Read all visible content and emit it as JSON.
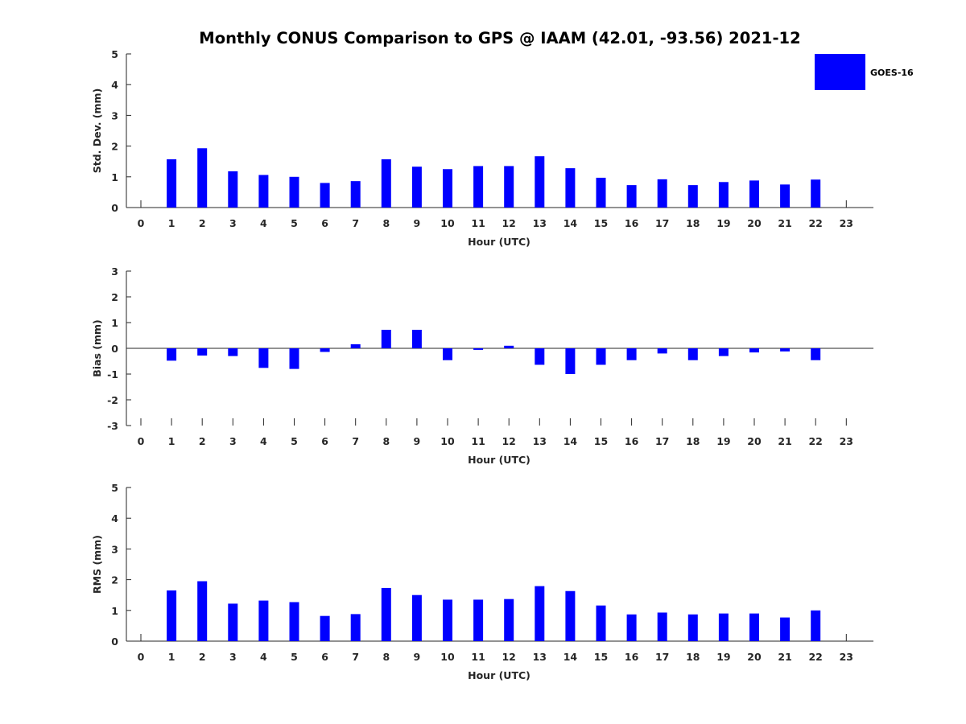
{
  "chart_data": {
    "type": "bar",
    "title": "Monthly CONUS Comparison to GPS @ IAAM (42.01, -93.56) 2021-12",
    "legend": {
      "label": "GOES-16",
      "placement": "top-right"
    },
    "colors": {
      "bar": "#0000ff",
      "axis": "#262626"
    },
    "categories": [
      "0",
      "1",
      "2",
      "3",
      "4",
      "5",
      "6",
      "7",
      "8",
      "9",
      "10",
      "11",
      "12",
      "13",
      "14",
      "15",
      "16",
      "17",
      "18",
      "19",
      "20",
      "21",
      "22",
      "23"
    ],
    "panels": [
      {
        "id": "stddev",
        "ylabel": "Std. Dev. (mm)",
        "xlabel": "Hour (UTC)",
        "ylim": [
          0,
          5
        ],
        "yticks": [
          0,
          1,
          2,
          3,
          4,
          5
        ],
        "values": [
          null,
          1.57,
          1.93,
          1.18,
          1.06,
          1.0,
          0.8,
          0.86,
          1.57,
          1.33,
          1.25,
          1.35,
          1.35,
          1.67,
          1.28,
          0.97,
          0.73,
          0.92,
          0.73,
          0.83,
          0.88,
          0.75,
          0.91,
          null
        ]
      },
      {
        "id": "bias",
        "ylabel": "Bias (mm)",
        "xlabel": "Hour (UTC)",
        "ylim": [
          -3,
          3
        ],
        "yticks": [
          -3,
          -2,
          -1,
          0,
          1,
          2,
          3
        ],
        "values": [
          null,
          -0.48,
          -0.28,
          -0.3,
          -0.76,
          -0.8,
          -0.14,
          0.16,
          0.72,
          0.72,
          -0.46,
          -0.06,
          0.1,
          -0.64,
          -1.0,
          -0.64,
          -0.46,
          -0.2,
          -0.46,
          -0.3,
          -0.16,
          -0.12,
          -0.46,
          null
        ]
      },
      {
        "id": "rms",
        "ylabel": "RMS (mm)",
        "xlabel": "Hour (UTC)",
        "ylim": [
          0,
          5
        ],
        "yticks": [
          0,
          1,
          2,
          3,
          4,
          5
        ],
        "values": [
          null,
          1.65,
          1.95,
          1.22,
          1.32,
          1.27,
          0.82,
          0.88,
          1.73,
          1.5,
          1.35,
          1.35,
          1.37,
          1.79,
          1.63,
          1.16,
          0.87,
          0.93,
          0.87,
          0.9,
          0.9,
          0.77,
          1.0,
          null
        ]
      }
    ]
  }
}
